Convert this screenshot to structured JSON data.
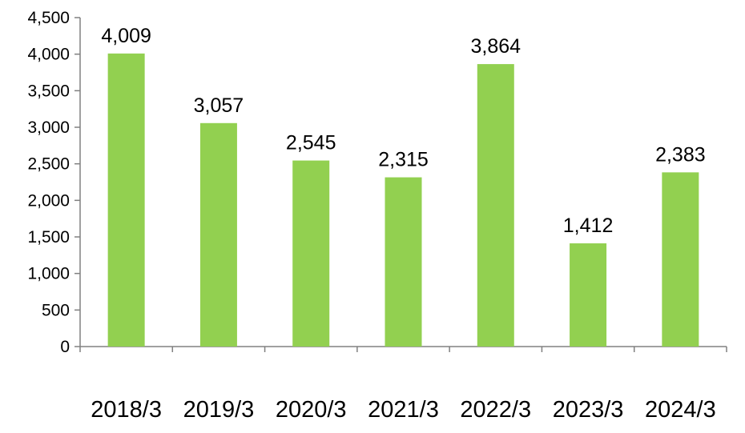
{
  "chart_data": {
    "type": "bar",
    "categories": [
      "2018/3",
      "2019/3",
      "2020/3",
      "2021/3",
      "2022/3",
      "2023/3",
      "2024/3"
    ],
    "values": [
      4009,
      3057,
      2545,
      2315,
      3864,
      1412,
      2383
    ],
    "data_labels": [
      "4,009",
      "3,057",
      "2,545",
      "2,315",
      "3,864",
      "1,412",
      "2,383"
    ],
    "y_ticks": [
      0,
      500,
      1000,
      1500,
      2000,
      2500,
      3000,
      3500,
      4000,
      4500
    ],
    "y_tick_labels": [
      "0",
      "500",
      "1,000",
      "1,500",
      "2,000",
      "2,500",
      "3,000",
      "3,500",
      "4,000",
      "4,500"
    ],
    "ylim": [
      0,
      4500
    ],
    "grid": false,
    "legend": "none",
    "bar_color": "#92d050",
    "title": "",
    "xlabel": "",
    "ylabel": ""
  }
}
